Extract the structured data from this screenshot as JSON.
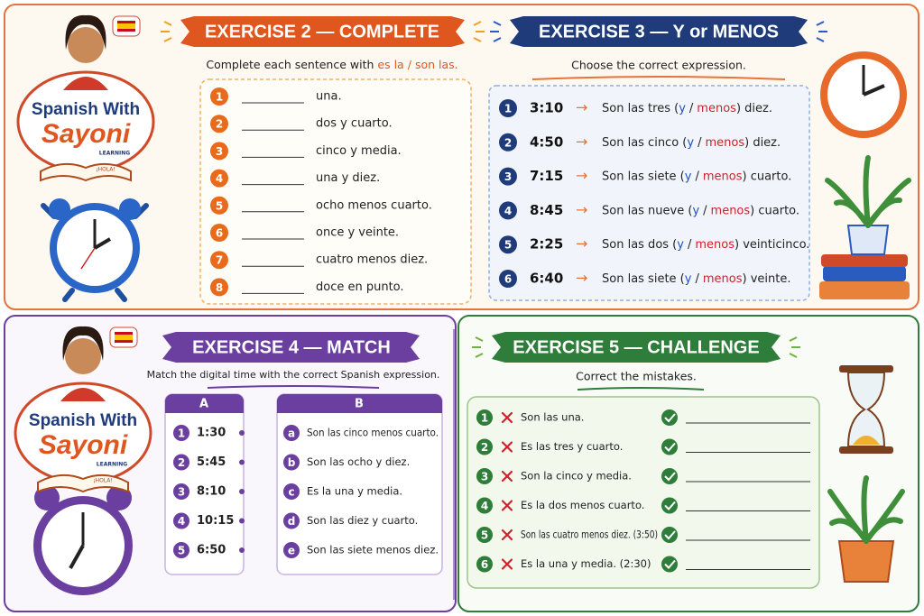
{
  "logo": {
    "line1": "Spanish With",
    "line2": "Sayoni",
    "subtitle": "LEARNING",
    "book_text": "¡HOLA!"
  },
  "exercise2": {
    "title": "EXERCISE 2 — COMPLETE",
    "instruction": "Complete each sentence with",
    "option_a": "es la",
    "separator": "/",
    "option_b": "son las.",
    "items": [
      {
        "number": "1",
        "text": "una."
      },
      {
        "number": "2",
        "text": "dos y cuarto."
      },
      {
        "number": "3",
        "text": "cinco y media."
      },
      {
        "number": "4",
        "text": "una y diez."
      },
      {
        "number": "5",
        "text": "ocho menos cuarto."
      },
      {
        "number": "6",
        "text": "once y veinte."
      },
      {
        "number": "7",
        "text": "cuatro menos diez."
      },
      {
        "number": "8",
        "text": "doce en punto."
      }
    ]
  },
  "exercise3": {
    "title": "EXERCISE 3 — Y or MENOS",
    "instruction": "Choose the correct expression.",
    "arrow": "→",
    "separator": "/",
    "items": [
      {
        "number": "1",
        "time": "3:10",
        "prefix": "Son las tres (",
        "choice_a": "y",
        "choice_b": "menos",
        "suffix": ") diez."
      },
      {
        "number": "2",
        "time": "4:50",
        "prefix": "Son las cinco (",
        "choice_a": "y",
        "choice_b": "menos",
        "suffix": ") diez."
      },
      {
        "number": "3",
        "time": "7:15",
        "prefix": "Son las siete (",
        "choice_a": "y",
        "choice_b": "menos",
        "suffix": ") cuarto."
      },
      {
        "number": "4",
        "time": "8:45",
        "prefix": "Son las nueve (",
        "choice_a": "y",
        "choice_b": "menos",
        "suffix": ") cuarto."
      },
      {
        "number": "5",
        "time": "2:25",
        "prefix": "Son las dos (",
        "choice_a": "y",
        "choice_b": "menos",
        "suffix": ") veinticinco."
      },
      {
        "number": "6",
        "time": "6:40",
        "prefix": "Son las siete (",
        "choice_a": "y",
        "choice_b": "menos",
        "suffix": ") veinte."
      }
    ]
  },
  "exercise4": {
    "title": "EXERCISE 4 — MATCH",
    "instruction": "Match the digital time with the correct Spanish expression.",
    "column_a": {
      "header": "A",
      "items": [
        {
          "number": "1",
          "time": "1:30"
        },
        {
          "number": "2",
          "time": "5:45"
        },
        {
          "number": "3",
          "time": "8:10"
        },
        {
          "number": "4",
          "time": "10:15"
        },
        {
          "number": "5",
          "time": "6:50"
        }
      ]
    },
    "column_b": {
      "header": "B",
      "items": [
        {
          "letter": "a",
          "text": "Son las cinco menos cuarto."
        },
        {
          "letter": "b",
          "text": "Son las ocho y diez."
        },
        {
          "letter": "c",
          "text": "Es la una y media."
        },
        {
          "letter": "d",
          "text": "Son las diez y cuarto."
        },
        {
          "letter": "e",
          "text": "Son las siete menos diez."
        }
      ]
    }
  },
  "exercise5": {
    "title": "EXERCISE 5 — CHALLENGE",
    "instruction": "Correct the mistakes.",
    "items": [
      {
        "number": "1",
        "text": "Son las una."
      },
      {
        "number": "2",
        "text": "Es las tres y cuarto."
      },
      {
        "number": "3",
        "text": "Son la cinco y media."
      },
      {
        "number": "4",
        "text": "Es la dos menos cuarto."
      },
      {
        "number": "5",
        "text": "Son las cuatro menos diez. (3:50)"
      },
      {
        "number": "6",
        "text": "Es la una y media. (2:30)"
      }
    ]
  }
}
